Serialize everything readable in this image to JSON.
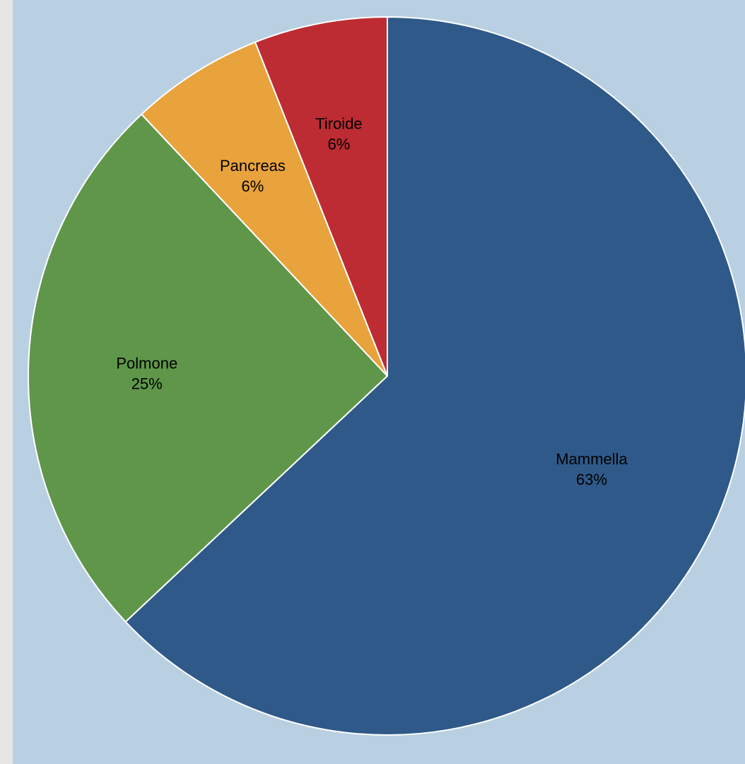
{
  "chart_data": {
    "type": "pie",
    "title": "",
    "slices": [
      {
        "name": "Mammella",
        "value": 63,
        "label": "63%",
        "color": "#2f5989"
      },
      {
        "name": "Polmone",
        "value": 25,
        "label": "25%",
        "color": "#5f964a"
      },
      {
        "name": "Pancreas",
        "value": 6,
        "label": "6%",
        "color": "#e8a33d"
      },
      {
        "name": "Tiroide",
        "value": 6,
        "label": "6%",
        "color": "#bc2c32"
      }
    ],
    "start": "12 o'clock",
    "direction": "clockwise",
    "legend": "none",
    "data_labels": "category name and percentage inside slices"
  },
  "colors": {
    "plot_background": "#b9d0e2",
    "page_background": "#e6e6e6",
    "slice_border": "#ffffff"
  }
}
